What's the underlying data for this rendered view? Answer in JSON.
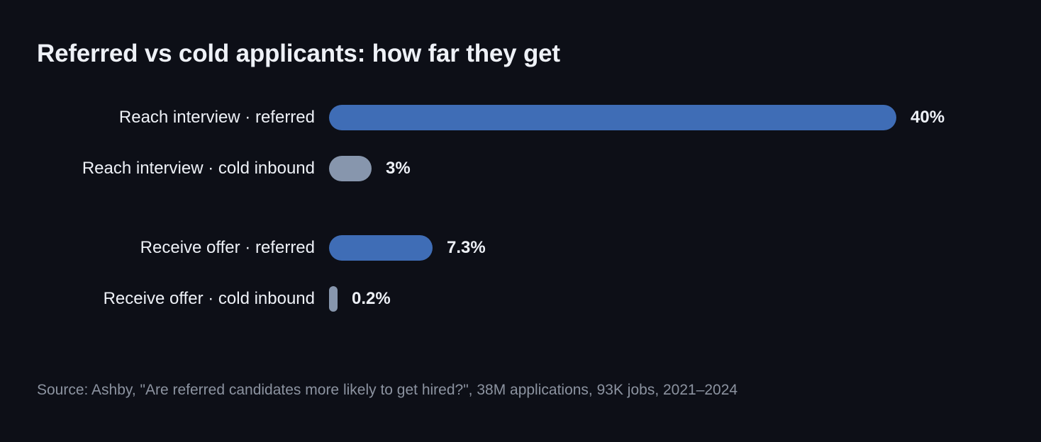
{
  "chart_data": {
    "type": "bar",
    "orientation": "horizontal",
    "title": "Referred vs cold applicants: how far they get",
    "categories": [
      "Reach interview · referred",
      "Reach interview · cold inbound",
      "Receive offer · referred",
      "Receive offer · cold inbound"
    ],
    "values": [
      40,
      3,
      7.3,
      0.2
    ],
    "value_labels": [
      "40%",
      "3%",
      "7.3%",
      "0.2%"
    ],
    "groups": [
      "interview",
      "interview",
      "offer",
      "offer"
    ],
    "xlim": [
      0,
      40
    ],
    "grid": false,
    "colors": {
      "referred": "#3f6db6",
      "cold_inbound": "#8796ad"
    },
    "bar_colors": [
      "#3f6db6",
      "#8796ad",
      "#3f6db6",
      "#8796ad"
    ],
    "source": "Source: Ashby, \"Are referred candidates more likely to get hired?\", 38M applications, 93K jobs, 2021–2024"
  }
}
